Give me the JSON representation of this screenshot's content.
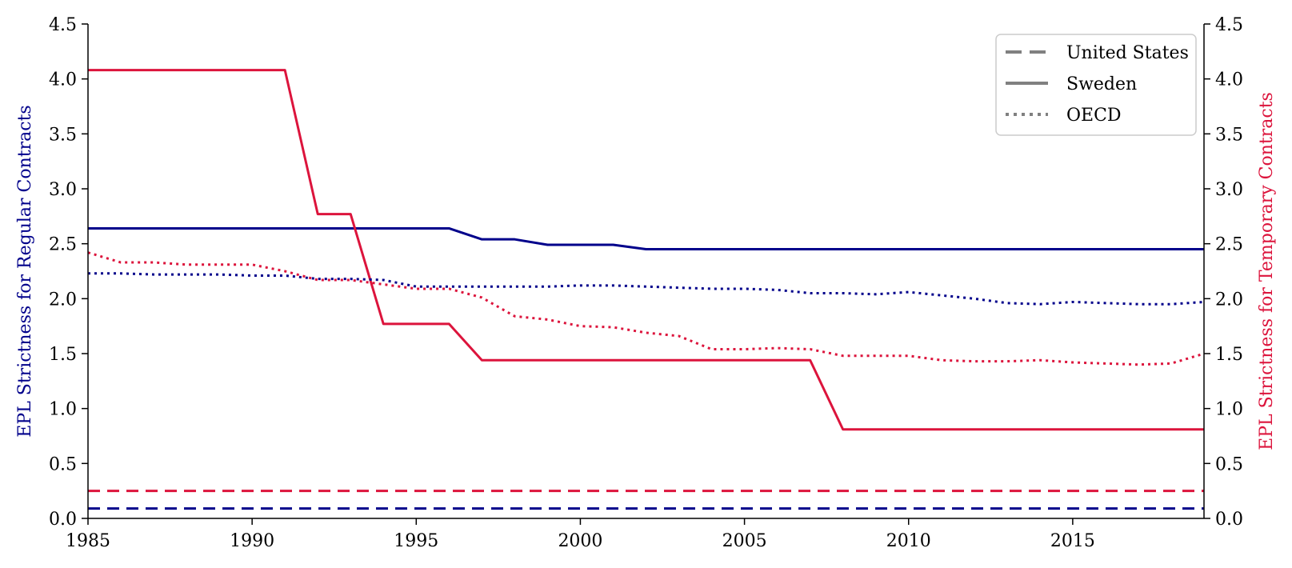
{
  "chart_data": {
    "type": "line",
    "ylabel_left": "EPL Strictness for Regular Contracts",
    "ylabel_right": "EPL Strictness for Temporary Contracts",
    "xlim": [
      1985,
      2019
    ],
    "ylim": [
      0.0,
      4.5
    ],
    "x_ticks": [
      "1985",
      "1990",
      "1995",
      "2000",
      "2005",
      "2010",
      "2015"
    ],
    "y_ticks": [
      "0.0",
      "0.5",
      "1.0",
      "1.5",
      "2.0",
      "2.5",
      "3.0",
      "3.5",
      "4.0",
      "4.5"
    ],
    "colors": {
      "regular": "#00008b",
      "temporary": "#dc143c",
      "legend": "#808080"
    },
    "legend": {
      "position": "upper right",
      "entries": [
        {
          "label": "United States",
          "dash": "dashed"
        },
        {
          "label": "Sweden",
          "dash": "solid"
        },
        {
          "label": "OECD",
          "dash": "dotted"
        }
      ]
    },
    "x": [
      1985,
      1986,
      1987,
      1988,
      1989,
      1990,
      1991,
      1992,
      1993,
      1994,
      1995,
      1996,
      1997,
      1998,
      1999,
      2000,
      2001,
      2002,
      2003,
      2004,
      2005,
      2006,
      2007,
      2008,
      2009,
      2010,
      2011,
      2012,
      2013,
      2014,
      2015,
      2016,
      2017,
      2018,
      2019
    ],
    "series": [
      {
        "country": "United States",
        "contract": "regular",
        "axis": "left",
        "dash": "dashed",
        "values": [
          0.09,
          0.09,
          0.09,
          0.09,
          0.09,
          0.09,
          0.09,
          0.09,
          0.09,
          0.09,
          0.09,
          0.09,
          0.09,
          0.09,
          0.09,
          0.09,
          0.09,
          0.09,
          0.09,
          0.09,
          0.09,
          0.09,
          0.09,
          0.09,
          0.09,
          0.09,
          0.09,
          0.09,
          0.09,
          0.09,
          0.09,
          0.09,
          0.09,
          0.09,
          0.09
        ]
      },
      {
        "country": "United States",
        "contract": "temporary",
        "axis": "right",
        "dash": "dashed",
        "values": [
          0.25,
          0.25,
          0.25,
          0.25,
          0.25,
          0.25,
          0.25,
          0.25,
          0.25,
          0.25,
          0.25,
          0.25,
          0.25,
          0.25,
          0.25,
          0.25,
          0.25,
          0.25,
          0.25,
          0.25,
          0.25,
          0.25,
          0.25,
          0.25,
          0.25,
          0.25,
          0.25,
          0.25,
          0.25,
          0.25,
          0.25,
          0.25,
          0.25,
          0.25,
          0.25
        ]
      },
      {
        "country": "Sweden",
        "contract": "regular",
        "axis": "left",
        "dash": "solid",
        "values": [
          2.64,
          2.64,
          2.64,
          2.64,
          2.64,
          2.64,
          2.64,
          2.64,
          2.64,
          2.64,
          2.64,
          2.64,
          2.54,
          2.54,
          2.49,
          2.49,
          2.49,
          2.45,
          2.45,
          2.45,
          2.45,
          2.45,
          2.45,
          2.45,
          2.45,
          2.45,
          2.45,
          2.45,
          2.45,
          2.45,
          2.45,
          2.45,
          2.45,
          2.45,
          2.45
        ]
      },
      {
        "country": "Sweden",
        "contract": "temporary",
        "axis": "right",
        "dash": "solid",
        "values": [
          4.08,
          4.08,
          4.08,
          4.08,
          4.08,
          4.08,
          4.08,
          2.77,
          2.77,
          1.77,
          1.77,
          1.77,
          1.44,
          1.44,
          1.44,
          1.44,
          1.44,
          1.44,
          1.44,
          1.44,
          1.44,
          1.44,
          1.44,
          0.81,
          0.81,
          0.81,
          0.81,
          0.81,
          0.81,
          0.81,
          0.81,
          0.81,
          0.81,
          0.81,
          0.81
        ]
      },
      {
        "country": "OECD",
        "contract": "regular",
        "axis": "left",
        "dash": "dotted",
        "values": [
          2.23,
          2.23,
          2.22,
          2.22,
          2.22,
          2.21,
          2.21,
          2.18,
          2.18,
          2.17,
          2.11,
          2.11,
          2.11,
          2.11,
          2.11,
          2.12,
          2.12,
          2.11,
          2.1,
          2.09,
          2.09,
          2.08,
          2.05,
          2.05,
          2.04,
          2.06,
          2.03,
          2.0,
          1.96,
          1.95,
          1.97,
          1.96,
          1.95,
          1.95,
          1.97
        ]
      },
      {
        "country": "OECD",
        "contract": "temporary",
        "axis": "right",
        "dash": "dotted",
        "values": [
          2.42,
          2.33,
          2.33,
          2.31,
          2.31,
          2.31,
          2.25,
          2.17,
          2.17,
          2.13,
          2.09,
          2.09,
          2.01,
          1.84,
          1.81,
          1.75,
          1.74,
          1.69,
          1.66,
          1.54,
          1.54,
          1.55,
          1.54,
          1.48,
          1.48,
          1.48,
          1.44,
          1.43,
          1.43,
          1.44,
          1.42,
          1.41,
          1.4,
          1.41,
          1.5
        ]
      }
    ]
  }
}
